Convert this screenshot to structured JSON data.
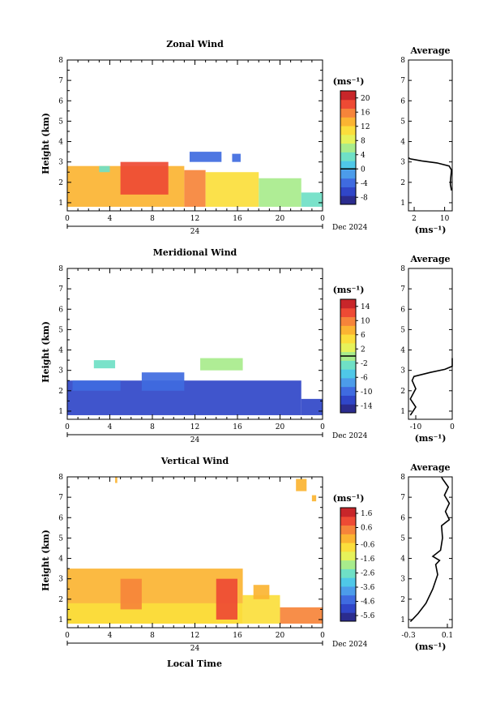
{
  "xlabel": "Local Time",
  "date_label": "Dec 2024",
  "day_label": "24",
  "chart_data": [
    {
      "type": "heatmap",
      "name": "zonal",
      "title": "Zonal Wind",
      "ylabel": "Height (km)",
      "unit": "(ms⁻¹)",
      "x_ticks": [
        "0",
        "4",
        "8",
        "12",
        "16",
        "20",
        "0"
      ],
      "y_ticks": [
        "1",
        "2",
        "3",
        "4",
        "5",
        "6",
        "7",
        "8"
      ],
      "xlim": [
        0,
        24
      ],
      "ylim": [
        0.6,
        8.0
      ],
      "colorbar_ticks": [
        "-8",
        "-4",
        "0",
        "4",
        "8",
        "12",
        "16",
        "20"
      ],
      "colorbar_range": [
        -10,
        22
      ],
      "colorbar_line": 0,
      "regions": [
        {
          "x": [
            0,
            11
          ],
          "y": [
            0.8,
            2.8
          ],
          "value": 14
        },
        {
          "x": [
            5,
            9.5
          ],
          "y": [
            1.4,
            3.0
          ],
          "value": 18
        },
        {
          "x": [
            3,
            4
          ],
          "y": [
            2.5,
            2.8
          ],
          "value": 4
        },
        {
          "x": [
            11,
            13
          ],
          "y": [
            0.8,
            2.6
          ],
          "value": 16
        },
        {
          "x": [
            13,
            18
          ],
          "y": [
            0.8,
            2.5
          ],
          "value": 10
        },
        {
          "x": [
            18,
            22
          ],
          "y": [
            0.8,
            2.2
          ],
          "value": 7
        },
        {
          "x": [
            22,
            24
          ],
          "y": [
            0.8,
            1.5
          ],
          "value": 3
        },
        {
          "x": [
            11.5,
            14.5
          ],
          "y": [
            3.0,
            3.5
          ],
          "value": -4
        },
        {
          "x": [
            15.5,
            16.3
          ],
          "y": [
            3.0,
            3.4
          ],
          "value": -3
        }
      ],
      "average": {
        "title": "Average",
        "xlabel": "(ms⁻¹)",
        "x_ticks": [
          "2",
          "10"
        ],
        "xlim": [
          0.5,
          12
        ],
        "profile": [
          {
            "x": 11.8,
            "y": 1.6
          },
          {
            "x": 11.5,
            "y": 1.9
          },
          {
            "x": 11.6,
            "y": 2.2
          },
          {
            "x": 11.8,
            "y": 2.6
          },
          {
            "x": 11.2,
            "y": 2.8
          },
          {
            "x": 8.0,
            "y": 2.95
          },
          {
            "x": 4.0,
            "y": 3.05
          },
          {
            "x": 1.0,
            "y": 3.15
          },
          {
            "x": 0.5,
            "y": 3.2
          }
        ]
      }
    },
    {
      "type": "heatmap",
      "name": "meridional",
      "title": "Meridional Wind",
      "ylabel": "Height (km)",
      "unit": "(ms⁻¹)",
      "x_ticks": [
        "0",
        "4",
        "8",
        "12",
        "16",
        "20",
        "0"
      ],
      "y_ticks": [
        "1",
        "2",
        "3",
        "4",
        "5",
        "6",
        "7",
        "8"
      ],
      "xlim": [
        0,
        24
      ],
      "ylim": [
        0.6,
        8.0
      ],
      "colorbar_ticks": [
        "-14",
        "-10",
        "-6",
        "-2",
        "2",
        "6",
        "10",
        "14"
      ],
      "colorbar_range": [
        -16,
        16
      ],
      "colorbar_line": 0,
      "regions": [
        {
          "x": [
            0,
            22
          ],
          "y": [
            0.8,
            2.5
          ],
          "value": -12
        },
        {
          "x": [
            7,
            11
          ],
          "y": [
            2.0,
            2.9
          ],
          "value": -11
        },
        {
          "x": [
            22,
            24
          ],
          "y": [
            0.8,
            1.6
          ],
          "value": -13
        },
        {
          "x": [
            0.5,
            5
          ],
          "y": [
            2.0,
            2.5
          ],
          "value": -10
        },
        {
          "x": [
            2.5,
            4.5
          ],
          "y": [
            3.1,
            3.5
          ],
          "value": -2
        },
        {
          "x": [
            12.5,
            16.5
          ],
          "y": [
            3.0,
            3.6
          ],
          "value": 0
        }
      ],
      "average": {
        "title": "Average",
        "xlabel": "(ms⁻¹)",
        "x_ticks": [
          "-10",
          "0"
        ],
        "xlim": [
          -12,
          0
        ],
        "profile": [
          {
            "x": -11.5,
            "y": 0.8
          },
          {
            "x": -10.0,
            "y": 1.2
          },
          {
            "x": -11.5,
            "y": 1.6
          },
          {
            "x": -10.0,
            "y": 2.1
          },
          {
            "x": -11.0,
            "y": 2.5
          },
          {
            "x": -10.5,
            "y": 2.7
          },
          {
            "x": -6.0,
            "y": 2.9
          },
          {
            "x": -2.0,
            "y": 3.05
          },
          {
            "x": 0.0,
            "y": 3.2
          },
          {
            "x": 0.0,
            "y": 3.6
          }
        ]
      }
    },
    {
      "type": "heatmap",
      "name": "vertical",
      "title": "Vertical Wind",
      "ylabel": "Height (km)",
      "unit": "(ms⁻¹)",
      "x_ticks": [
        "0",
        "4",
        "8",
        "12",
        "16",
        "20",
        "0"
      ],
      "y_ticks": [
        "1",
        "2",
        "3",
        "4",
        "5",
        "6",
        "7",
        "8"
      ],
      "xlim": [
        0,
        24
      ],
      "ylim": [
        0.6,
        8.0
      ],
      "colorbar_ticks": [
        "-5.6",
        "-4.6",
        "-3.6",
        "-2.6",
        "-1.6",
        "-0.6",
        "0.6",
        "1.6"
      ],
      "colorbar_range": [
        -6.0,
        2.0
      ],
      "colorbar_line": null,
      "regions": [
        {
          "x": [
            0,
            16.5
          ],
          "y": [
            0.8,
            3.5
          ],
          "value": -0.3
        },
        {
          "x": [
            0,
            16.5
          ],
          "y": [
            0.8,
            1.8
          ],
          "value": -0.8
        },
        {
          "x": [
            16.5,
            20
          ],
          "y": [
            0.8,
            2.2
          ],
          "value": -0.6
        },
        {
          "x": [
            20,
            24
          ],
          "y": [
            0.8,
            1.6
          ],
          "value": 0.2
        },
        {
          "x": [
            5,
            7
          ],
          "y": [
            1.5,
            3.0
          ],
          "value": 0.3
        },
        {
          "x": [
            14,
            16
          ],
          "y": [
            1.0,
            3.0
          ],
          "value": 0.9
        },
        {
          "x": [
            17.5,
            19
          ],
          "y": [
            2.0,
            2.7
          ],
          "value": -0.1
        },
        {
          "x": [
            21.5,
            22.5
          ],
          "y": [
            7.3,
            7.9
          ],
          "value": 0.0
        },
        {
          "x": [
            23,
            23.4
          ],
          "y": [
            6.8,
            7.1
          ],
          "value": 0.0
        },
        {
          "x": [
            4.5,
            4.7
          ],
          "y": [
            7.7,
            8.0
          ],
          "value": -0.4
        }
      ],
      "average": {
        "title": "Average",
        "xlabel": "(ms⁻¹)",
        "x_ticks": [
          "-0.3",
          "0.1"
        ],
        "xlim": [
          -0.3,
          0.15
        ],
        "profile": [
          {
            "x": -0.28,
            "y": 0.9
          },
          {
            "x": -0.2,
            "y": 1.3
          },
          {
            "x": -0.12,
            "y": 1.8
          },
          {
            "x": -0.05,
            "y": 2.5
          },
          {
            "x": 0.0,
            "y": 3.2
          },
          {
            "x": -0.02,
            "y": 3.7
          },
          {
            "x": 0.02,
            "y": 3.9
          },
          {
            "x": -0.05,
            "y": 4.1
          },
          {
            "x": 0.03,
            "y": 4.4
          },
          {
            "x": 0.05,
            "y": 5.0
          },
          {
            "x": 0.04,
            "y": 5.6
          },
          {
            "x": 0.12,
            "y": 5.9
          },
          {
            "x": 0.08,
            "y": 6.3
          },
          {
            "x": 0.12,
            "y": 6.7
          },
          {
            "x": 0.07,
            "y": 7.1
          },
          {
            "x": 0.11,
            "y": 7.5
          },
          {
            "x": 0.05,
            "y": 7.9
          },
          {
            "x": 0.04,
            "y": 8.0
          }
        ]
      }
    }
  ]
}
